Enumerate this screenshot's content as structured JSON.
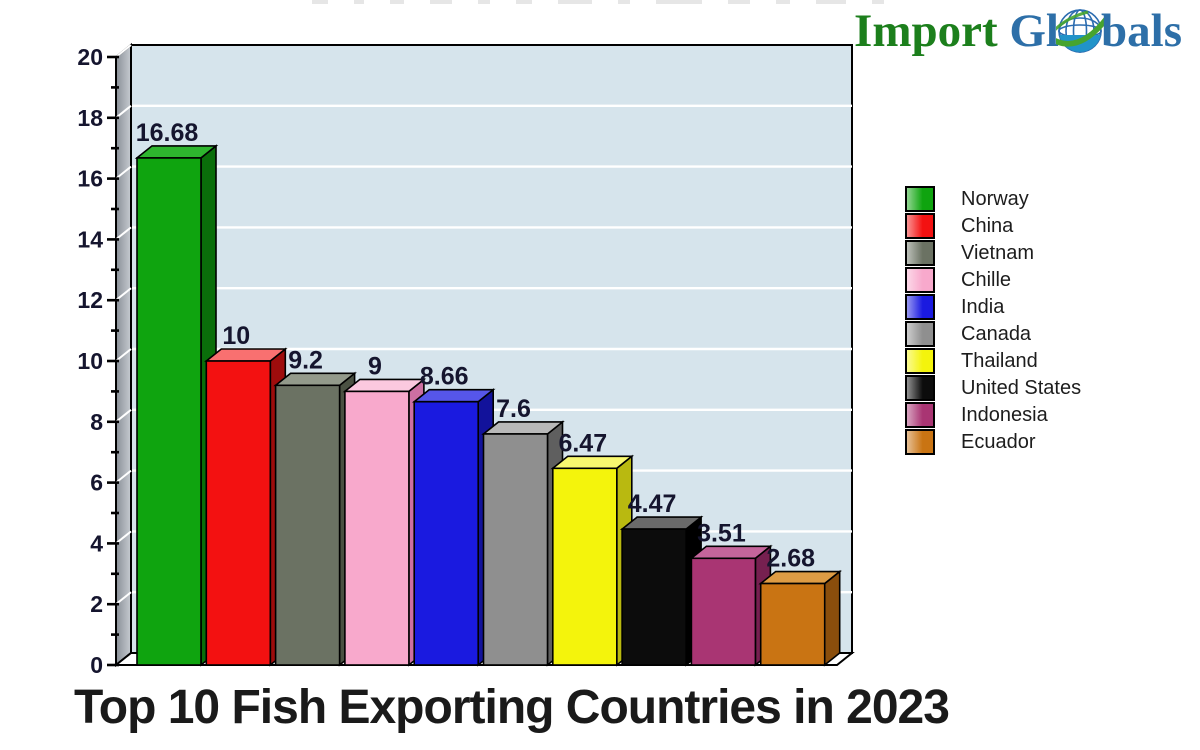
{
  "logo": {
    "part1": "Import",
    "part2": "Gl",
    "part3": "bals",
    "colors": {
      "import_green": "#1c7f1c",
      "globals_blue": "#2d6fa8",
      "globe_blue": "#2193c9",
      "globe_wire_blue": "#2b6cb0",
      "swoosh_green": "#46a42f"
    }
  },
  "title": "Top 10 Fish Exporting Countries in 2023",
  "chart_data": {
    "type": "bar",
    "style": "3d",
    "title": "Top 10 Fish Exporting Countries in 2023",
    "categories": [
      "Norway",
      "China",
      "Vietnam",
      "Chille",
      "India",
      "Canada",
      "Thailand",
      "United States",
      "Indonesia",
      "Ecuador"
    ],
    "values": [
      16.68,
      10,
      9.2,
      9,
      8.66,
      7.6,
      6.47,
      4.47,
      3.51,
      2.68
    ],
    "value_labels": [
      "16.68",
      "10",
      "9.2",
      "9",
      "8.66",
      "7.6",
      "6.47",
      "4.47",
      "3.51",
      "2.68"
    ],
    "colors": [
      {
        "front": "#0fa40f",
        "top": "#2eb52e",
        "side": "#0a6e0a"
      },
      {
        "front": "#f31111",
        "top": "#f97070",
        "side": "#9e0c0c"
      },
      {
        "front": "#6b7263",
        "top": "#939a8b",
        "side": "#4a5142"
      },
      {
        "front": "#f8a9cc",
        "top": "#fbc9df",
        "side": "#cc6fa2"
      },
      {
        "front": "#1a1ae0",
        "top": "#5656ea",
        "side": "#12129b"
      },
      {
        "front": "#8f8f8f",
        "top": "#b8b8b8",
        "side": "#5f5f5f"
      },
      {
        "front": "#f4f40c",
        "top": "#f8f870",
        "side": "#b9b910"
      },
      {
        "front": "#0c0c0c",
        "top": "#6a6a6a",
        "side": "#000000"
      },
      {
        "front": "#a93573",
        "top": "#c4659b",
        "side": "#762050"
      },
      {
        "front": "#c97413",
        "top": "#de9c44",
        "side": "#8a4e0c"
      }
    ],
    "ylim": [
      0,
      20
    ],
    "ytick_step": 2,
    "minor_tick_step": 1,
    "ytick_labels": [
      "0",
      "2",
      "4",
      "6",
      "8",
      "10",
      "12",
      "14",
      "16",
      "18",
      "20"
    ],
    "grid": true,
    "gridline_color": "#ffffff",
    "plot_bg": "#d6e4ec",
    "floor_color": "#ffffff",
    "wall_gradient": [
      "#898f96",
      "#c6cbd1"
    ],
    "outline_color": "#000000",
    "label_color": "#15152e",
    "legend_position": "right"
  },
  "legend": {
    "items": [
      "Norway",
      "China",
      "Vietnam",
      "Chille",
      "India",
      "Canada",
      "Thailand",
      "United States",
      "Indonesia",
      "Ecuador"
    ]
  }
}
